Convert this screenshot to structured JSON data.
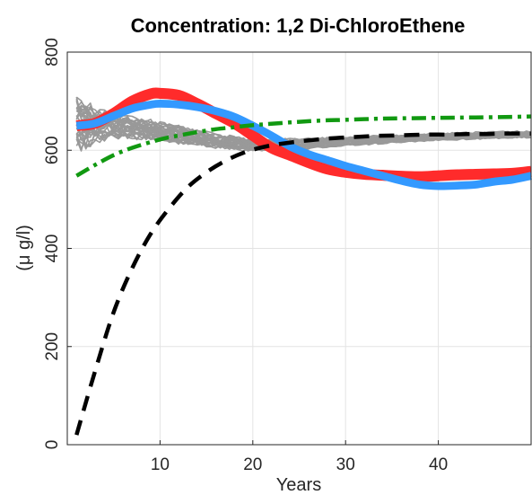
{
  "chart_data": {
    "type": "line",
    "title": "Concentration: 1,2 Di-ChloroEthene",
    "xlabel": "Years",
    "ylabel": "(μ g/l)",
    "xlim": [
      0,
      50
    ],
    "ylim": [
      0,
      800
    ],
    "xticks": [
      10,
      20,
      30,
      40
    ],
    "yticks": [
      0,
      200,
      400,
      600,
      800
    ],
    "grid": true,
    "colors": {
      "ensemble": "#999999",
      "red": "#ff2b2b",
      "blue": "#3399ff",
      "green": "#119911",
      "black": "#000000"
    },
    "series": [
      {
        "style": "band",
        "color": "red",
        "x": [
          1,
          3,
          5,
          7,
          9,
          10,
          12,
          14,
          16,
          18,
          20,
          22,
          24,
          26,
          28,
          30,
          32,
          34,
          36,
          38,
          40,
          42,
          44,
          46,
          48,
          50
        ],
        "y": [
          650,
          655,
          675,
          700,
          715,
          716,
          712,
          695,
          675,
          655,
          630,
          605,
          590,
          575,
          562,
          555,
          551,
          549,
          547,
          546,
          548,
          550,
          551,
          552,
          553,
          557
        ],
        "width": 22
      },
      {
        "style": "band",
        "color": "blue",
        "x": [
          1,
          3,
          5,
          7,
          9,
          10,
          12,
          14,
          16,
          18,
          20,
          22,
          24,
          26,
          28,
          30,
          32,
          34,
          36,
          38,
          40,
          42,
          44,
          46,
          48,
          50
        ],
        "y": [
          650,
          655,
          670,
          685,
          693,
          695,
          693,
          688,
          680,
          668,
          650,
          630,
          608,
          592,
          580,
          568,
          558,
          548,
          538,
          530,
          527,
          528,
          530,
          536,
          540,
          548
        ],
        "width": 16
      },
      {
        "style": "dashdot",
        "color": "green",
        "x": [
          1,
          3,
          5,
          7,
          10,
          12,
          14,
          16,
          18,
          20,
          22,
          25,
          28,
          30,
          33,
          36,
          40,
          44,
          48,
          50
        ],
        "y": [
          548,
          570,
          590,
          605,
          622,
          630,
          637,
          643,
          647,
          651,
          654,
          658,
          661,
          662,
          664,
          665,
          666,
          667,
          668,
          669
        ]
      },
      {
        "style": "dashed",
        "color": "black",
        "x": [
          1,
          3,
          5,
          7,
          9,
          11,
          13,
          15,
          17,
          19,
          21,
          23,
          25,
          27,
          29,
          31,
          33,
          35,
          37,
          39,
          41,
          43,
          45,
          47,
          50
        ],
        "y": [
          20,
          150,
          270,
          360,
          430,
          482,
          525,
          555,
          578,
          595,
          606,
          613,
          618,
          622,
          625,
          627,
          629,
          630,
          631,
          632,
          632,
          633,
          633,
          634,
          634
        ]
      }
    ],
    "ensemble": {
      "count": 30,
      "x": [
        1,
        2,
        3,
        5,
        7,
        10,
        13,
        16,
        20,
        25,
        30,
        35,
        40,
        45,
        50
      ],
      "mean": [
        650,
        650,
        650,
        648,
        645,
        637,
        628,
        618,
        610,
        612,
        618,
        622,
        627,
        630,
        632
      ],
      "spread": [
        70,
        55,
        40,
        28,
        25,
        22,
        20,
        16,
        14,
        12,
        10,
        9,
        8,
        8,
        8
      ]
    }
  }
}
